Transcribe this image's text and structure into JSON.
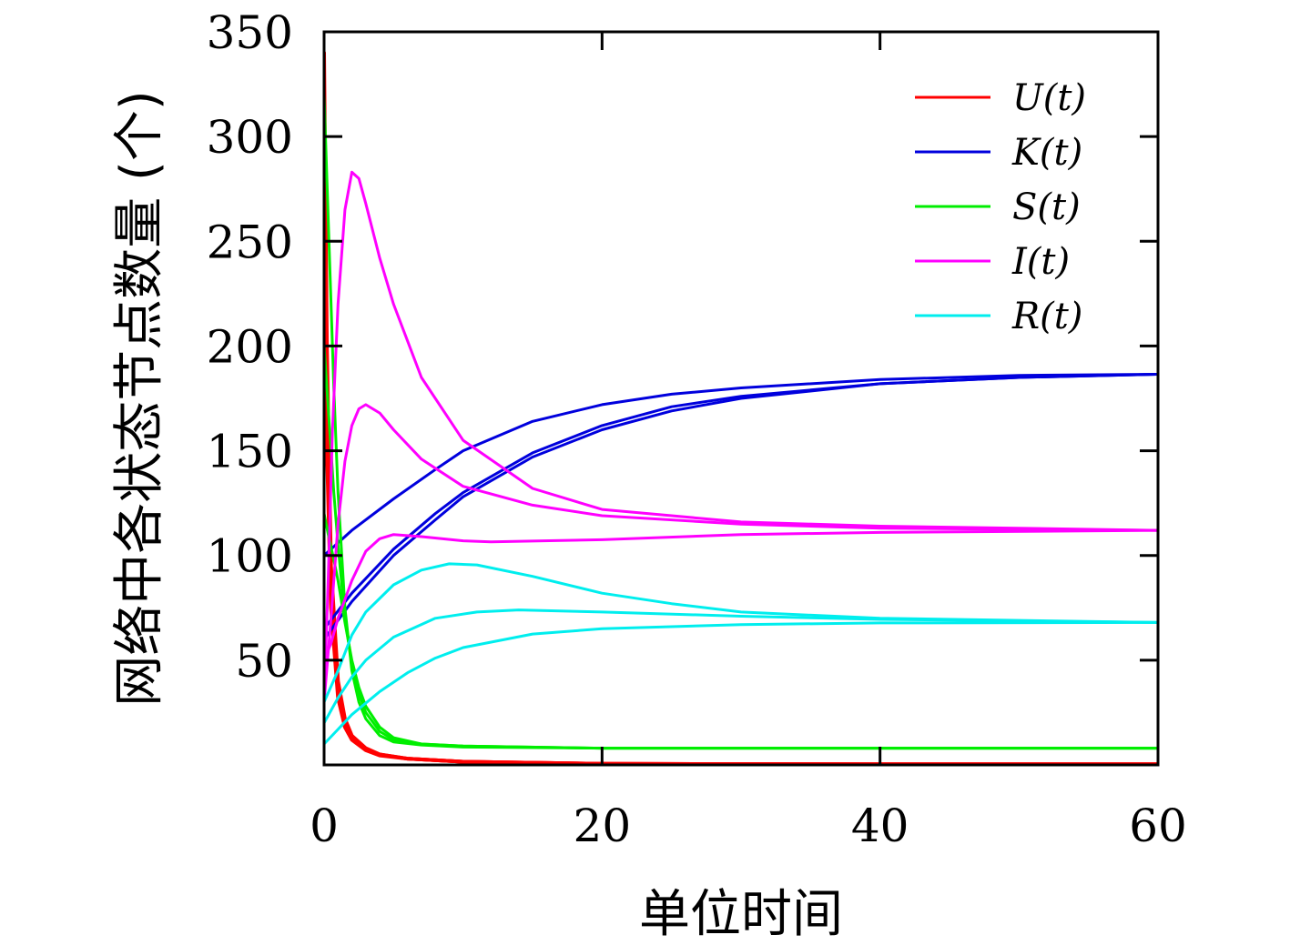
{
  "chart_data": {
    "type": "line",
    "title": "",
    "xlabel": "单位时间",
    "ylabel": "网络中各状态节点数量 (个)",
    "xlim": [
      0,
      60
    ],
    "ylim": [
      0,
      350
    ],
    "x_ticks": [
      "0",
      "20",
      "40",
      "60"
    ],
    "y_ticks": [
      "50",
      "100",
      "150",
      "200",
      "250",
      "300",
      "350"
    ],
    "grid": false,
    "legend_position": "top-right",
    "legend": [
      {
        "label": "U(t)",
        "color": "#ff0000"
      },
      {
        "label": "K(t)",
        "color": "#0000dd"
      },
      {
        "label": "S(t)",
        "color": "#00ee00"
      },
      {
        "label": "I(t)",
        "color": "#ff00ff"
      },
      {
        "label": "R(t)",
        "color": "#00eeee"
      }
    ],
    "series": [
      {
        "group": "U(t)",
        "color": "#ff0000",
        "points": [
          [
            0,
            340
          ],
          [
            0.2,
            200
          ],
          [
            0.5,
            95
          ],
          [
            1,
            40
          ],
          [
            1.5,
            22
          ],
          [
            2,
            14
          ],
          [
            3,
            8
          ],
          [
            4,
            5
          ],
          [
            6,
            3
          ],
          [
            10,
            1.5
          ],
          [
            20,
            0.5
          ],
          [
            40,
            0.3
          ],
          [
            60,
            0.3
          ]
        ]
      },
      {
        "group": "U(t)",
        "color": "#ff0000",
        "points": [
          [
            0,
            290
          ],
          [
            0.2,
            170
          ],
          [
            0.5,
            85
          ],
          [
            1,
            35
          ],
          [
            1.5,
            20
          ],
          [
            2,
            13
          ],
          [
            3,
            7.5
          ],
          [
            4,
            5
          ],
          [
            6,
            3
          ],
          [
            10,
            1.5
          ],
          [
            20,
            0.5
          ],
          [
            40,
            0.3
          ],
          [
            60,
            0.3
          ]
        ]
      },
      {
        "group": "U(t)",
        "color": "#ff0000",
        "points": [
          [
            0,
            240
          ],
          [
            0.2,
            150
          ],
          [
            0.5,
            75
          ],
          [
            1,
            32
          ],
          [
            1.5,
            18
          ],
          [
            2,
            12
          ],
          [
            3,
            7
          ],
          [
            4,
            4.5
          ],
          [
            6,
            3
          ],
          [
            10,
            1.5
          ],
          [
            20,
            0.5
          ],
          [
            40,
            0.3
          ],
          [
            60,
            0.3
          ]
        ]
      },
      {
        "group": "K(t)",
        "color": "#0000dd",
        "points": [
          [
            0,
            100
          ],
          [
            2,
            112
          ],
          [
            5,
            127
          ],
          [
            8,
            141
          ],
          [
            10,
            150
          ],
          [
            15,
            164
          ],
          [
            20,
            172
          ],
          [
            25,
            177
          ],
          [
            30,
            180
          ],
          [
            40,
            184
          ],
          [
            50,
            186
          ],
          [
            60,
            186.5
          ]
        ]
      },
      {
        "group": "K(t)",
        "color": "#0000dd",
        "points": [
          [
            0,
            65
          ],
          [
            2,
            82
          ],
          [
            5,
            103
          ],
          [
            8,
            120
          ],
          [
            10,
            130
          ],
          [
            15,
            149
          ],
          [
            20,
            162
          ],
          [
            25,
            171
          ],
          [
            30,
            176
          ],
          [
            40,
            182
          ],
          [
            50,
            185
          ],
          [
            60,
            186.5
          ]
        ]
      },
      {
        "group": "K(t)",
        "color": "#0000dd",
        "points": [
          [
            0,
            60
          ],
          [
            2,
            78
          ],
          [
            5,
            100
          ],
          [
            8,
            117
          ],
          [
            10,
            128
          ],
          [
            15,
            147
          ],
          [
            20,
            160
          ],
          [
            25,
            169
          ],
          [
            30,
            175
          ],
          [
            40,
            182
          ],
          [
            50,
            185
          ],
          [
            60,
            186.5
          ]
        ]
      },
      {
        "group": "S(t)",
        "color": "#00ee00",
        "points": [
          [
            0,
            320
          ],
          [
            0.3,
            260
          ],
          [
            0.7,
            180
          ],
          [
            1,
            130
          ],
          [
            1.5,
            75
          ],
          [
            2,
            45
          ],
          [
            2.5,
            30
          ],
          [
            3,
            22
          ],
          [
            4,
            14
          ],
          [
            5,
            11
          ],
          [
            7,
            9.5
          ],
          [
            10,
            8.5
          ],
          [
            20,
            8
          ],
          [
            40,
            8
          ],
          [
            60,
            8
          ]
        ]
      },
      {
        "group": "S(t)",
        "color": "#00ee00",
        "points": [
          [
            0,
            200
          ],
          [
            0.3,
            170
          ],
          [
            0.7,
            130
          ],
          [
            1,
            105
          ],
          [
            1.5,
            70
          ],
          [
            2,
            48
          ],
          [
            2.5,
            34
          ],
          [
            3,
            25
          ],
          [
            4,
            16
          ],
          [
            5,
            12
          ],
          [
            7,
            10
          ],
          [
            10,
            9
          ],
          [
            20,
            8
          ],
          [
            40,
            8
          ],
          [
            60,
            8
          ]
        ]
      },
      {
        "group": "S(t)",
        "color": "#00ee00",
        "points": [
          [
            0,
            120
          ],
          [
            0.3,
            110
          ],
          [
            0.7,
            98
          ],
          [
            1,
            88
          ],
          [
            1.5,
            68
          ],
          [
            2,
            50
          ],
          [
            2.5,
            37
          ],
          [
            3,
            28
          ],
          [
            4,
            18
          ],
          [
            5,
            13
          ],
          [
            7,
            10
          ],
          [
            10,
            9
          ],
          [
            20,
            8
          ],
          [
            40,
            8
          ],
          [
            60,
            8
          ]
        ]
      },
      {
        "group": "I(t)",
        "color": "#ff00ff",
        "points": [
          [
            0,
            30
          ],
          [
            0.3,
            90
          ],
          [
            0.6,
            160
          ],
          [
            1,
            220
          ],
          [
            1.5,
            265
          ],
          [
            2,
            283
          ],
          [
            2.5,
            280
          ],
          [
            3,
            268
          ],
          [
            4,
            242
          ],
          [
            5,
            220
          ],
          [
            7,
            185
          ],
          [
            10,
            155
          ],
          [
            15,
            132
          ],
          [
            20,
            122
          ],
          [
            30,
            116
          ],
          [
            40,
            114
          ],
          [
            60,
            112
          ]
        ]
      },
      {
        "group": "I(t)",
        "color": "#ff00ff",
        "points": [
          [
            0,
            30
          ],
          [
            0.5,
            70
          ],
          [
            1,
            115
          ],
          [
            1.5,
            145
          ],
          [
            2,
            162
          ],
          [
            2.5,
            170
          ],
          [
            3,
            172
          ],
          [
            4,
            168
          ],
          [
            5,
            160
          ],
          [
            7,
            146
          ],
          [
            10,
            133
          ],
          [
            15,
            124
          ],
          [
            20,
            119
          ],
          [
            30,
            115
          ],
          [
            40,
            113
          ],
          [
            60,
            112
          ]
        ]
      },
      {
        "group": "I(t)",
        "color": "#ff00ff",
        "points": [
          [
            0,
            50
          ],
          [
            0.5,
            58
          ],
          [
            1,
            70
          ],
          [
            2,
            88
          ],
          [
            3,
            102
          ],
          [
            4,
            108
          ],
          [
            5,
            110
          ],
          [
            7,
            109
          ],
          [
            10,
            107
          ],
          [
            12,
            106.5
          ],
          [
            20,
            107.5
          ],
          [
            30,
            110
          ],
          [
            40,
            111
          ],
          [
            60,
            112
          ]
        ]
      },
      {
        "group": "R(t)",
        "color": "#00eeee",
        "points": [
          [
            0,
            30
          ],
          [
            1,
            45
          ],
          [
            2,
            62
          ],
          [
            3,
            73
          ],
          [
            5,
            86
          ],
          [
            7,
            93
          ],
          [
            9,
            96
          ],
          [
            11,
            95.5
          ],
          [
            15,
            90
          ],
          [
            20,
            82
          ],
          [
            25,
            77
          ],
          [
            30,
            73
          ],
          [
            40,
            70
          ],
          [
            60,
            68
          ]
        ]
      },
      {
        "group": "R(t)",
        "color": "#00eeee",
        "points": [
          [
            0,
            20
          ],
          [
            1,
            32
          ],
          [
            2,
            42
          ],
          [
            3,
            50
          ],
          [
            5,
            61
          ],
          [
            8,
            70
          ],
          [
            11,
            73
          ],
          [
            14,
            74
          ],
          [
            20,
            73
          ],
          [
            30,
            71
          ],
          [
            40,
            69.5
          ],
          [
            60,
            68
          ]
        ]
      },
      {
        "group": "R(t)",
        "color": "#00eeee",
        "points": [
          [
            0,
            10
          ],
          [
            1,
            17
          ],
          [
            2,
            24
          ],
          [
            4,
            35
          ],
          [
            6,
            44
          ],
          [
            8,
            51
          ],
          [
            10,
            56
          ],
          [
            15,
            62.5
          ],
          [
            20,
            65
          ],
          [
            30,
            67
          ],
          [
            40,
            67.8
          ],
          [
            60,
            68
          ]
        ]
      }
    ]
  }
}
